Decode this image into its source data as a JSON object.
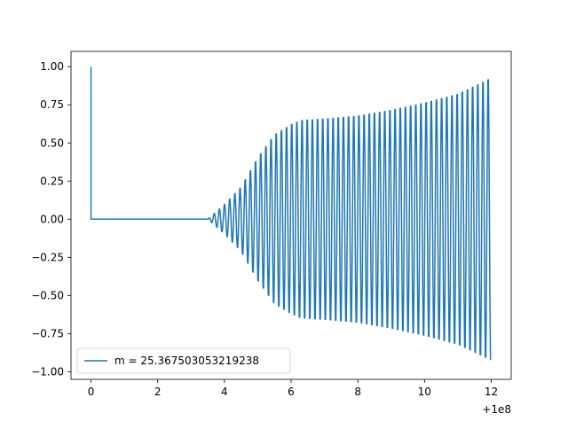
{
  "chart_data": {
    "type": "line",
    "title": "",
    "xlabel": "",
    "ylabel": "",
    "x_offset_label": "+1e8",
    "xlim": [
      -0.6,
      12.6
    ],
    "ylim": [
      -1.05,
      1.1
    ],
    "x_ticks": [
      0,
      2,
      4,
      6,
      8,
      10,
      12
    ],
    "x_tick_labels": [
      "0",
      "2",
      "4",
      "6",
      "8",
      "10",
      "12"
    ],
    "y_ticks": [
      1.0,
      0.75,
      0.5,
      0.25,
      0.0,
      -0.25,
      -0.5,
      -0.75,
      -1.0
    ],
    "y_tick_labels": [
      "1.00",
      "0.75",
      "0.50",
      "0.25",
      "0.00",
      "−0.25",
      "−0.50",
      "−0.75",
      "−1.00"
    ],
    "grid": false,
    "legend_position": "lower-left",
    "series": [
      {
        "name": "m = 25.367503053219238",
        "color": "#1f77b4",
        "description_of_shape": "oscillating signal",
        "x": [
          0.0,
          0.0,
          0.02,
          3.5,
          4.0,
          4.5,
          5.0,
          5.5,
          6.0,
          6.3,
          7.0,
          8.0,
          9.0,
          10.0,
          11.0,
          12.0
        ],
        "amplitude": [
          1.0,
          0.0,
          0.0,
          0.0,
          0.1,
          0.22,
          0.42,
          0.58,
          0.65,
          0.68,
          0.69,
          0.71,
          0.75,
          0.8,
          0.86,
          0.97
        ],
        "oscillation_period": 0.155
      }
    ]
  }
}
